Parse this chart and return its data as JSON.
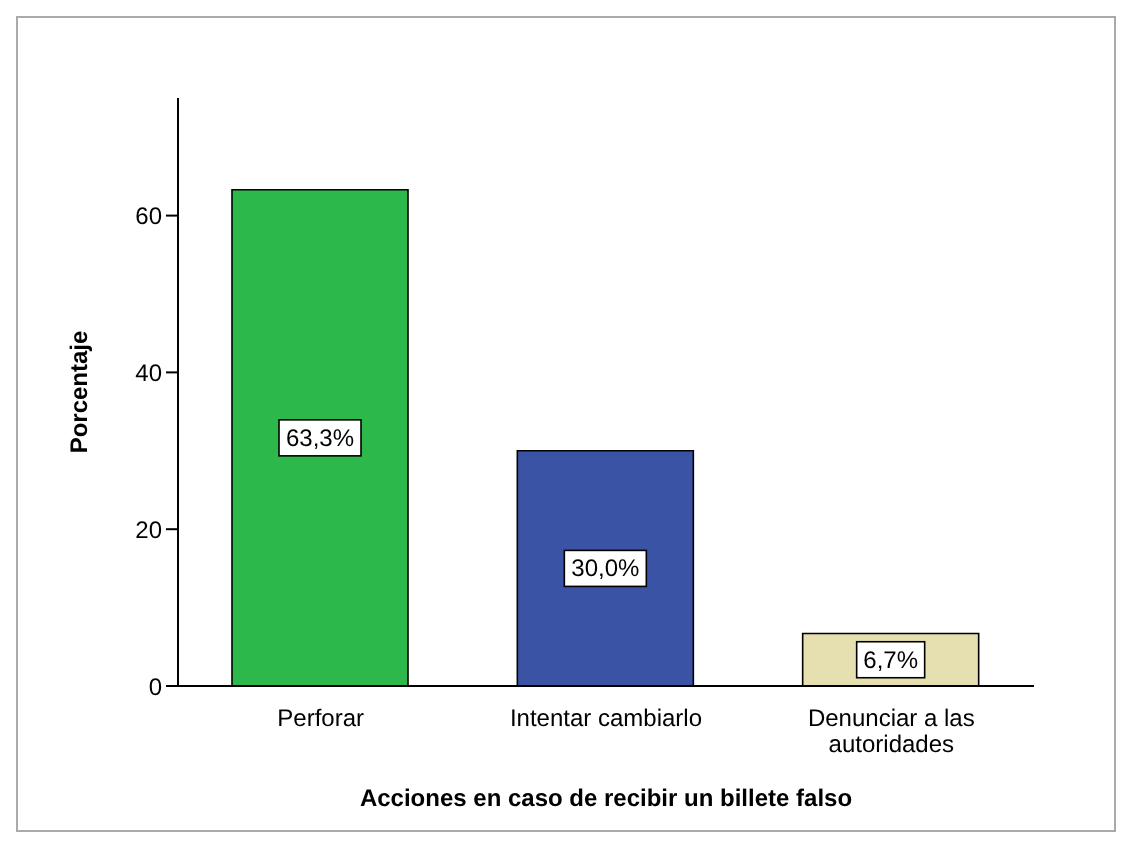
{
  "chart_data": {
    "type": "bar",
    "xlabel": "Acciones en caso de recibir un billete falso",
    "ylabel": "Porcentaje",
    "categories": [
      "Perforar",
      "Intentar cambiarlo",
      "Denunciar a las autoridades"
    ],
    "values": [
      63.3,
      30.0,
      6.7
    ],
    "colors": [
      "#2db84b",
      "#3a53a4",
      "#e6e0b0"
    ],
    "value_labels": [
      "63,3%",
      "30,0%",
      "6,7%"
    ],
    "ylim": [
      0,
      75
    ],
    "yticks": [
      0,
      20,
      40,
      60
    ],
    "grid": false,
    "legend": false
  }
}
